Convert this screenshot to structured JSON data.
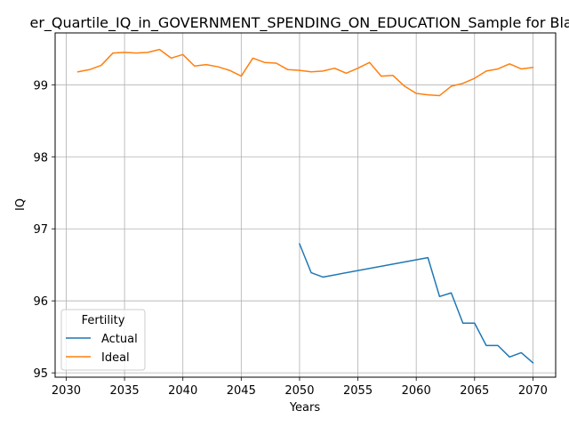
{
  "chart_data": {
    "type": "line",
    "title": "er_Quartile_IQ_in_GOVERNMENT_SPENDING_ON_EDUCATION_Sample for Blac",
    "xlabel": "Years",
    "ylabel": "IQ",
    "xlim": [
      2029.05,
      2071.95
    ],
    "ylim": [
      94.94,
      99.72
    ],
    "xticks": [
      2030,
      2035,
      2040,
      2045,
      2050,
      2055,
      2060,
      2065,
      2070
    ],
    "yticks": [
      95,
      96,
      97,
      98,
      99
    ],
    "grid": true,
    "legend": {
      "title": "Fertility",
      "position": "lower-left"
    },
    "series": [
      {
        "name": "Actual",
        "color": "#1f77b4",
        "x": [
          2050,
          2051,
          2052,
          2061,
          2062,
          2063,
          2064,
          2065,
          2066,
          2067,
          2068,
          2069,
          2070
        ],
        "y": [
          96.79,
          96.39,
          96.33,
          96.6,
          96.06,
          96.11,
          95.69,
          95.69,
          95.38,
          95.38,
          95.22,
          95.28,
          95.14
        ]
      },
      {
        "name": "Ideal",
        "color": "#ff7f0e",
        "x": [
          2031,
          2032,
          2033,
          2034,
          2035,
          2036,
          2037,
          2038,
          2039,
          2040,
          2041,
          2042,
          2043,
          2044,
          2045,
          2046,
          2047,
          2048,
          2049,
          2050,
          2051,
          2052,
          2053,
          2054,
          2055,
          2056,
          2057,
          2058,
          2059,
          2060,
          2061,
          2062,
          2063,
          2064,
          2065,
          2066,
          2067,
          2068,
          2069,
          2070
        ],
        "y": [
          99.18,
          99.21,
          99.27,
          99.44,
          99.45,
          99.44,
          99.45,
          99.49,
          99.37,
          99.42,
          99.26,
          99.28,
          99.25,
          99.2,
          99.12,
          99.37,
          99.31,
          99.3,
          99.21,
          99.2,
          99.18,
          99.19,
          99.23,
          99.16,
          99.23,
          99.31,
          99.12,
          99.13,
          98.98,
          98.88,
          98.86,
          98.85,
          98.98,
          99.02,
          99.09,
          99.19,
          99.22,
          99.29,
          99.22,
          99.24
        ]
      }
    ]
  }
}
